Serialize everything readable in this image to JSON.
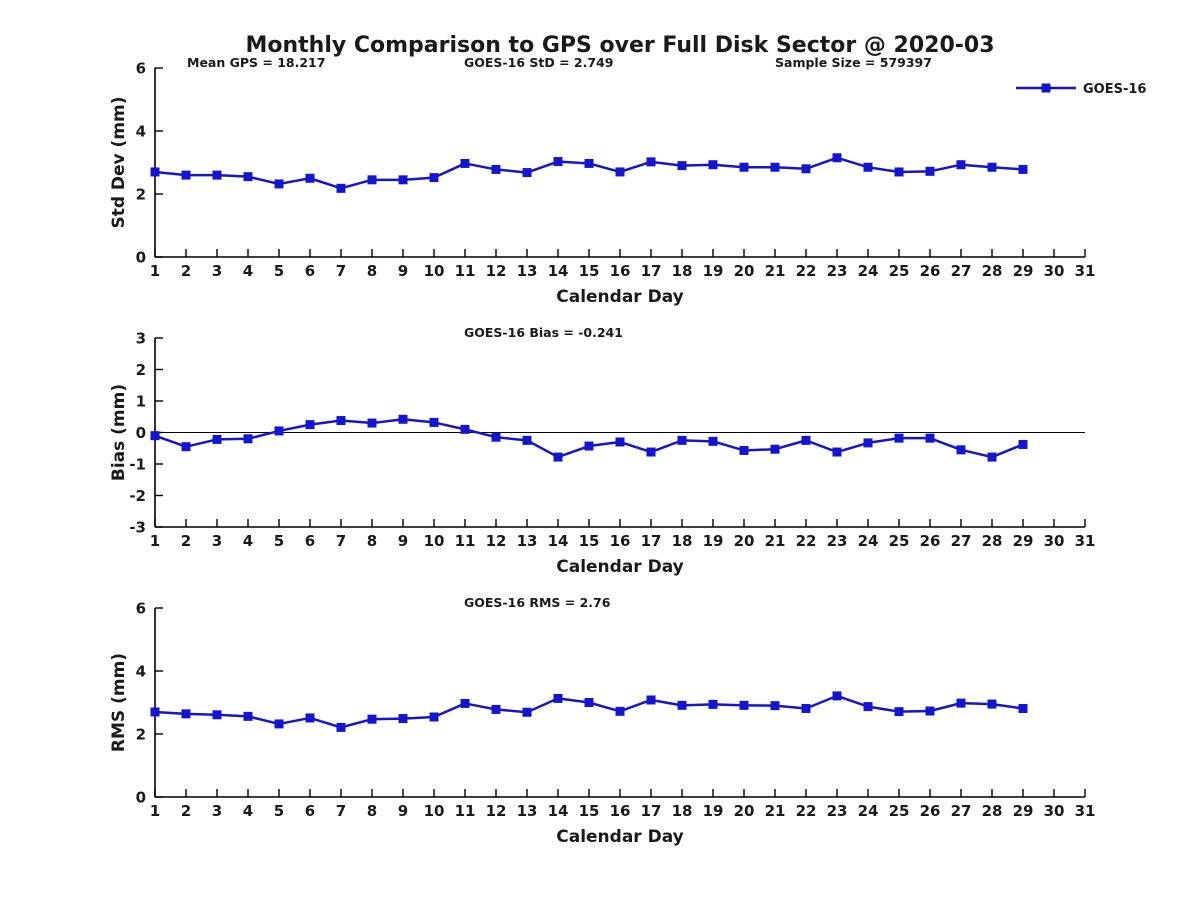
{
  "title": "Monthly Comparison to GPS over Full Disk Sector @ 2020-03",
  "legend": {
    "label": "GOES-16",
    "color": "#1515CE"
  },
  "x_axis": {
    "label": "Calendar Day",
    "min": 1,
    "max": 31,
    "tick_step": 1
  },
  "colors": {
    "series": "#1515CE",
    "text": "#1a1a1a",
    "axis": "#000000",
    "background": "#ffffff"
  },
  "chart_data": [
    {
      "type": "line",
      "name": "std-dev-panel",
      "ylabel": "Std Dev (mm)",
      "ylim": [
        0,
        6
      ],
      "yticks": [
        0,
        2,
        4,
        6
      ],
      "zero_line": false,
      "annotations": [
        "Mean GPS = 18.217",
        "GOES-16 StD = 2.749",
        "Sample Size = 579397"
      ],
      "x": [
        1,
        2,
        3,
        4,
        5,
        6,
        7,
        8,
        9,
        10,
        11,
        12,
        13,
        14,
        15,
        16,
        17,
        18,
        19,
        20,
        21,
        22,
        23,
        24,
        25,
        26,
        27,
        28,
        29
      ],
      "series": [
        {
          "name": "GOES-16",
          "color": "#1515CE",
          "values": [
            2.7,
            2.6,
            2.6,
            2.55,
            2.32,
            2.5,
            2.18,
            2.45,
            2.45,
            2.52,
            2.97,
            2.78,
            2.68,
            3.03,
            2.97,
            2.7,
            3.02,
            2.9,
            2.93,
            2.85,
            2.85,
            2.8,
            3.15,
            2.85,
            2.7,
            2.72,
            2.93,
            2.85,
            2.78
          ]
        }
      ]
    },
    {
      "type": "line",
      "name": "bias-panel",
      "ylabel": "Bias (mm)",
      "ylim": [
        -3,
        3
      ],
      "yticks": [
        -3,
        -2,
        -1,
        0,
        1,
        2,
        3
      ],
      "zero_line": true,
      "annotations": [
        "GOES-16 Bias = -0.241"
      ],
      "x": [
        1,
        2,
        3,
        4,
        5,
        6,
        7,
        8,
        9,
        10,
        11,
        12,
        13,
        14,
        15,
        16,
        17,
        18,
        19,
        20,
        21,
        22,
        23,
        24,
        25,
        26,
        27,
        28,
        29
      ],
      "series": [
        {
          "name": "GOES-16",
          "color": "#1515CE",
          "values": [
            -0.1,
            -0.45,
            -0.22,
            -0.2,
            0.05,
            0.25,
            0.38,
            0.3,
            0.42,
            0.32,
            0.1,
            -0.15,
            -0.25,
            -0.78,
            -0.43,
            -0.3,
            -0.62,
            -0.25,
            -0.28,
            -0.57,
            -0.53,
            -0.25,
            -0.62,
            -0.33,
            -0.18,
            -0.18,
            -0.55,
            -0.78,
            -0.38
          ]
        }
      ]
    },
    {
      "type": "line",
      "name": "rms-panel",
      "ylabel": "RMS (mm)",
      "ylim": [
        0,
        6
      ],
      "yticks": [
        0,
        2,
        4,
        6
      ],
      "zero_line": false,
      "annotations": [
        "GOES-16 RMS = 2.76"
      ],
      "x": [
        1,
        2,
        3,
        4,
        5,
        6,
        7,
        8,
        9,
        10,
        11,
        12,
        13,
        14,
        15,
        16,
        17,
        18,
        19,
        20,
        21,
        22,
        23,
        24,
        25,
        26,
        27,
        28,
        29
      ],
      "series": [
        {
          "name": "GOES-16",
          "color": "#1515CE",
          "values": [
            2.7,
            2.64,
            2.61,
            2.56,
            2.32,
            2.51,
            2.21,
            2.47,
            2.49,
            2.54,
            2.97,
            2.78,
            2.69,
            3.13,
            3.0,
            2.72,
            3.08,
            2.91,
            2.94,
            2.91,
            2.9,
            2.81,
            3.21,
            2.87,
            2.71,
            2.73,
            2.98,
            2.95,
            2.81
          ]
        }
      ]
    }
  ]
}
